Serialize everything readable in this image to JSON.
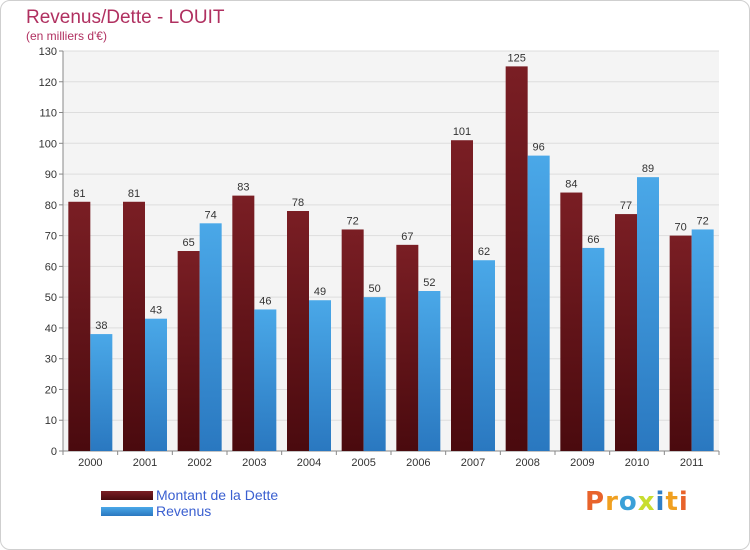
{
  "title": "Revenus/Dette - LOUIT",
  "subtitle": "(en milliers d'€)",
  "logo": {
    "letters": [
      "P",
      "r",
      "o",
      "x",
      "i",
      "t",
      "i"
    ],
    "colors": [
      "#e8632b",
      "#f0a020",
      "#3aa0d8",
      "#c8dd30",
      "#2f7fc8",
      "#f0a020",
      "#e8632b"
    ]
  },
  "colors": {
    "dette": "#7a1e24",
    "dette_dark": "#4a0a0e",
    "revenus": "#4aa8e8",
    "revenus_dark": "#2a78c0",
    "grid": "#dddddd",
    "plot_bg": "#f4f4f4"
  },
  "chart_data": {
    "type": "bar",
    "categories": [
      "2000",
      "2001",
      "2002",
      "2003",
      "2004",
      "2005",
      "2006",
      "2007",
      "2008",
      "2009",
      "2010",
      "2011"
    ],
    "series": [
      {
        "name": "Montant de la Dette",
        "values": [
          81,
          81,
          65,
          83,
          78,
          72,
          67,
          101,
          125,
          84,
          77,
          70
        ]
      },
      {
        "name": "Revenus",
        "values": [
          38,
          43,
          74,
          46,
          49,
          50,
          52,
          62,
          96,
          66,
          89,
          72
        ]
      }
    ],
    "ylim": [
      0,
      130
    ],
    "yticks": [
      0,
      10,
      20,
      30,
      40,
      50,
      60,
      70,
      80,
      90,
      100,
      110,
      120,
      130
    ],
    "grid": true,
    "legend": "bottom-left"
  }
}
